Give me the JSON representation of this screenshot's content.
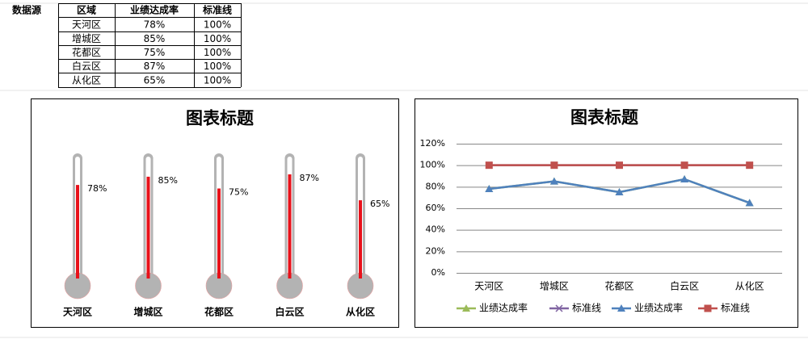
{
  "table": {
    "label": "数据源",
    "header": [
      "区域",
      "业绩达成率",
      "标准线"
    ],
    "rows": [
      [
        "天河区",
        "78%",
        "100%"
      ],
      [
        "增城区",
        "85%",
        "100%"
      ],
      [
        "花都区",
        "75%",
        "100%"
      ],
      [
        "白云区",
        "87%",
        "100%"
      ],
      [
        "从化区",
        "65%",
        "100%"
      ]
    ]
  },
  "chart_data": [
    {
      "type": "thermometer",
      "title": "图表标题",
      "categories": [
        "天河区",
        "增城区",
        "花都区",
        "白云区",
        "从化区"
      ],
      "ylim": [
        0,
        100
      ],
      "series": [
        {
          "color": "#e8111a",
          "values": [
            78,
            85,
            75,
            87,
            65
          ],
          "value_labels": [
            "78%",
            "85%",
            "75%",
            "87%",
            "65%"
          ]
        },
        {
          "color": "#b3b3b3",
          "values": [
            100,
            100,
            100,
            100,
            100
          ]
        }
      ]
    },
    {
      "type": "line",
      "title": "图表标题",
      "categories": [
        "天河区",
        "增城区",
        "花都区",
        "白云区",
        "从化区"
      ],
      "ylim": [
        0,
        120
      ],
      "yticks": [
        {
          "value": 0,
          "label": "0%"
        },
        {
          "value": 20,
          "label": "20%"
        },
        {
          "value": 40,
          "label": "40%"
        },
        {
          "value": 60,
          "label": "60%"
        },
        {
          "value": 80,
          "label": "80%"
        },
        {
          "value": 100,
          "label": "100%"
        },
        {
          "value": 120,
          "label": "120%"
        }
      ],
      "grid": true,
      "legend": "bottom",
      "series": [
        {
          "name": "业绩达成率",
          "color": "#9bbb59",
          "marker": "triangle",
          "values": [
            78,
            85,
            75,
            87,
            65
          ]
        },
        {
          "name": "标准线",
          "color": "#8064a2",
          "marker": "x",
          "values": [
            100,
            100,
            100,
            100,
            100
          ]
        },
        {
          "name": "业绩达成率",
          "color": "#4f81bd",
          "marker": "triangle",
          "values": [
            78,
            85,
            75,
            87,
            65
          ]
        },
        {
          "name": "标准线",
          "color": "#c0504d",
          "marker": "square",
          "values": [
            100,
            100,
            100,
            100,
            100
          ]
        }
      ]
    }
  ]
}
